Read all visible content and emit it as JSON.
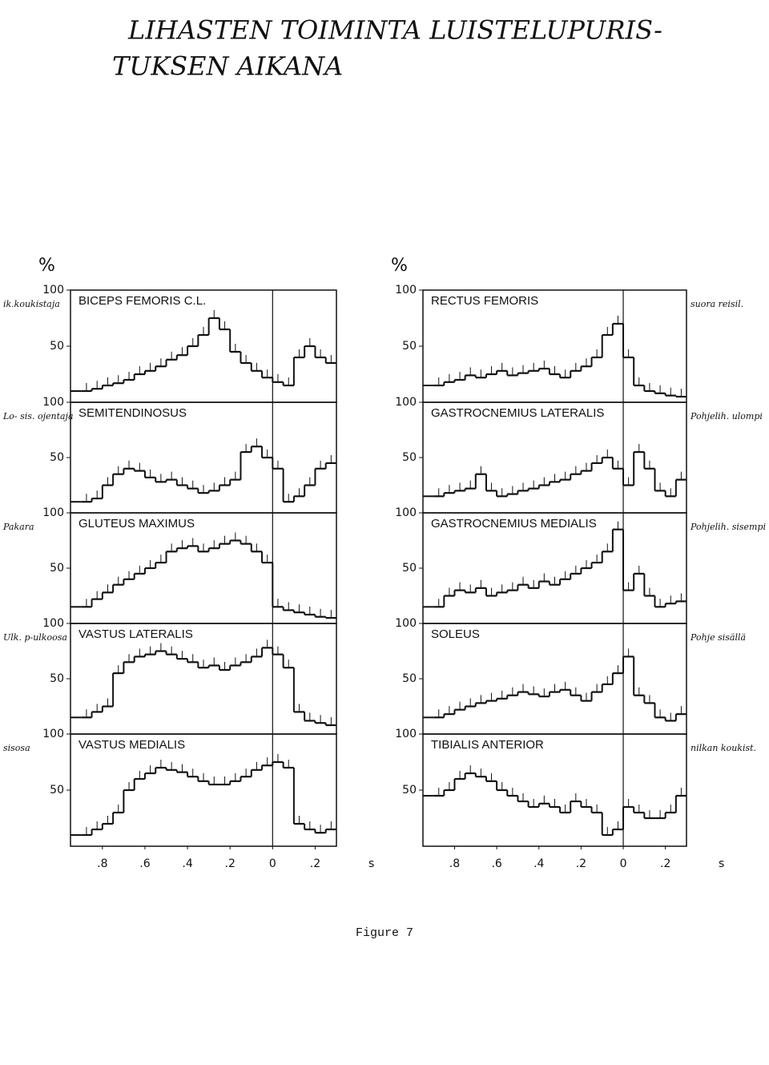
{
  "title_lines": [
    "LIHASTEN TOIMINTA LUISTELUPURIS-",
    "TUKSEN AIKANA"
  ],
  "caption": "Figure 7",
  "left_notes": [
    "ik.koukistaja",
    "Lo- sis. ojentaja",
    "Pakara",
    "Ulk. p-ulkoosa",
    "sisosa"
  ],
  "right_notes": [
    "suora reisil.",
    "Pohjelih. ulompi",
    "Pohjelih. sisempi",
    "Pohje sisällä",
    "nilkan koukist."
  ],
  "chart_data": [
    {
      "type": "step",
      "title": "BICEPS FEMORIS C.L.",
      "ylabel": "%",
      "xlim": [
        -0.95,
        0.3
      ],
      "ylim": [
        0,
        100
      ],
      "yticks": [
        100,
        50
      ],
      "x": [
        -0.9,
        -0.85,
        -0.8,
        -0.75,
        -0.7,
        -0.65,
        -0.6,
        -0.55,
        -0.5,
        -0.45,
        -0.4,
        -0.35,
        -0.3,
        -0.25,
        -0.2,
        -0.15,
        -0.1,
        -0.05,
        0,
        0.05,
        0.1,
        0.15,
        0.2,
        0.25
      ],
      "values": [
        10,
        12,
        15,
        17,
        20,
        25,
        28,
        32,
        38,
        42,
        50,
        60,
        75,
        65,
        45,
        35,
        28,
        22,
        18,
        15,
        40,
        50,
        40,
        35
      ]
    },
    {
      "type": "step",
      "title": "SEMITENDINOSUS",
      "xlim": [
        -0.95,
        0.3
      ],
      "ylim": [
        0,
        100
      ],
      "yticks": [
        100,
        50
      ],
      "x": [
        -0.9,
        -0.85,
        -0.8,
        -0.75,
        -0.7,
        -0.65,
        -0.6,
        -0.55,
        -0.5,
        -0.45,
        -0.4,
        -0.35,
        -0.3,
        -0.25,
        -0.2,
        -0.15,
        -0.1,
        -0.05,
        0,
        0.05,
        0.1,
        0.15,
        0.2,
        0.25
      ],
      "values": [
        10,
        13,
        25,
        35,
        40,
        38,
        32,
        28,
        30,
        25,
        22,
        18,
        20,
        25,
        30,
        55,
        60,
        50,
        40,
        10,
        15,
        25,
        40,
        45
      ]
    },
    {
      "type": "step",
      "title": "GLUTEUS MAXIMUS",
      "xlim": [
        -0.95,
        0.3
      ],
      "ylim": [
        0,
        100
      ],
      "yticks": [
        100,
        50
      ],
      "x": [
        -0.9,
        -0.85,
        -0.8,
        -0.75,
        -0.7,
        -0.65,
        -0.6,
        -0.55,
        -0.5,
        -0.45,
        -0.4,
        -0.35,
        -0.3,
        -0.25,
        -0.2,
        -0.15,
        -0.1,
        -0.05,
        0,
        0.05,
        0.1,
        0.15,
        0.2,
        0.25
      ],
      "values": [
        15,
        22,
        28,
        35,
        40,
        45,
        50,
        55,
        65,
        68,
        70,
        65,
        68,
        72,
        75,
        72,
        65,
        55,
        15,
        12,
        10,
        8,
        6,
        5
      ]
    },
    {
      "type": "step",
      "title": "VASTUS LATERALIS",
      "xlim": [
        -0.95,
        0.3
      ],
      "ylim": [
        0,
        100
      ],
      "yticks": [
        100,
        50
      ],
      "x": [
        -0.9,
        -0.85,
        -0.8,
        -0.75,
        -0.7,
        -0.65,
        -0.6,
        -0.55,
        -0.5,
        -0.45,
        -0.4,
        -0.35,
        -0.3,
        -0.25,
        -0.2,
        -0.15,
        -0.1,
        -0.05,
        0,
        0.05,
        0.1,
        0.15,
        0.2,
        0.25
      ],
      "values": [
        15,
        20,
        25,
        55,
        65,
        70,
        72,
        75,
        72,
        68,
        65,
        60,
        62,
        58,
        62,
        65,
        70,
        78,
        72,
        60,
        20,
        12,
        10,
        8
      ]
    },
    {
      "type": "step",
      "title": "VASTUS MEDIALIS",
      "xlim": [
        -0.95,
        0.3
      ],
      "ylim": [
        0,
        100
      ],
      "yticks": [
        100,
        50
      ],
      "xlabel": "s",
      "xticks": [
        {
          "value": -0.8,
          "label": ".8"
        },
        {
          "value": -0.6,
          "label": ".6"
        },
        {
          "value": -0.4,
          "label": ".4"
        },
        {
          "value": -0.2,
          "label": ".2"
        },
        0,
        {
          "value": 0.2,
          "label": ".2"
        }
      ],
      "x": [
        -0.9,
        -0.85,
        -0.8,
        -0.75,
        -0.7,
        -0.65,
        -0.6,
        -0.55,
        -0.5,
        -0.45,
        -0.4,
        -0.35,
        -0.3,
        -0.25,
        -0.2,
        -0.15,
        -0.1,
        -0.05,
        0,
        0.05,
        0.1,
        0.15,
        0.2,
        0.25
      ],
      "values": [
        10,
        15,
        20,
        30,
        50,
        60,
        65,
        70,
        68,
        66,
        62,
        58,
        55,
        55,
        58,
        62,
        68,
        72,
        75,
        70,
        20,
        15,
        12,
        15
      ]
    },
    {
      "type": "step",
      "title": "RECTUS FEMORIS",
      "ylabel": "%",
      "xlim": [
        -0.95,
        0.3
      ],
      "ylim": [
        0,
        100
      ],
      "yticks": [
        100,
        50
      ],
      "x": [
        -0.9,
        -0.85,
        -0.8,
        -0.75,
        -0.7,
        -0.65,
        -0.6,
        -0.55,
        -0.5,
        -0.45,
        -0.4,
        -0.35,
        -0.3,
        -0.25,
        -0.2,
        -0.15,
        -0.1,
        -0.05,
        0,
        0.05,
        0.1,
        0.15,
        0.2,
        0.25
      ],
      "values": [
        15,
        18,
        20,
        24,
        22,
        25,
        28,
        24,
        26,
        28,
        30,
        25,
        22,
        28,
        32,
        40,
        60,
        70,
        40,
        15,
        10,
        8,
        6,
        5
      ]
    },
    {
      "type": "step",
      "title": "GASTROCNEMIUS LATERALIS",
      "xlim": [
        -0.95,
        0.3
      ],
      "ylim": [
        0,
        100
      ],
      "yticks": [
        100,
        50
      ],
      "x": [
        -0.9,
        -0.85,
        -0.8,
        -0.75,
        -0.7,
        -0.65,
        -0.6,
        -0.55,
        -0.5,
        -0.45,
        -0.4,
        -0.35,
        -0.3,
        -0.25,
        -0.2,
        -0.15,
        -0.1,
        -0.05,
        0,
        0.05,
        0.1,
        0.15,
        0.2,
        0.25
      ],
      "values": [
        15,
        18,
        20,
        22,
        35,
        20,
        15,
        17,
        20,
        22,
        25,
        28,
        30,
        35,
        38,
        45,
        50,
        40,
        25,
        55,
        40,
        20,
        15,
        30
      ]
    },
    {
      "type": "step",
      "title": "GASTROCNEMIUS MEDIALIS",
      "xlim": [
        -0.95,
        0.3
      ],
      "ylim": [
        0,
        100
      ],
      "yticks": [
        100,
        50
      ],
      "x": [
        -0.9,
        -0.85,
        -0.8,
        -0.75,
        -0.7,
        -0.65,
        -0.6,
        -0.55,
        -0.5,
        -0.45,
        -0.4,
        -0.35,
        -0.3,
        -0.25,
        -0.2,
        -0.15,
        -0.1,
        -0.05,
        0,
        0.05,
        0.1,
        0.15,
        0.2,
        0.25
      ],
      "values": [
        15,
        25,
        30,
        28,
        32,
        25,
        28,
        30,
        35,
        32,
        38,
        35,
        40,
        45,
        50,
        55,
        65,
        85,
        30,
        45,
        25,
        15,
        18,
        20
      ]
    },
    {
      "type": "step",
      "title": "SOLEUS",
      "xlim": [
        -0.95,
        0.3
      ],
      "ylim": [
        0,
        100
      ],
      "yticks": [
        100,
        50
      ],
      "x": [
        -0.9,
        -0.85,
        -0.8,
        -0.75,
        -0.7,
        -0.65,
        -0.6,
        -0.55,
        -0.5,
        -0.45,
        -0.4,
        -0.35,
        -0.3,
        -0.25,
        -0.2,
        -0.15,
        -0.1,
        -0.05,
        0,
        0.05,
        0.1,
        0.15,
        0.2,
        0.25
      ],
      "values": [
        15,
        18,
        22,
        25,
        28,
        30,
        32,
        35,
        38,
        36,
        34,
        38,
        40,
        35,
        30,
        38,
        45,
        55,
        70,
        35,
        28,
        15,
        12,
        18
      ]
    },
    {
      "type": "step",
      "title": "TIBIALIS ANTERIOR",
      "xlim": [
        -0.95,
        0.3
      ],
      "ylim": [
        0,
        100
      ],
      "yticks": [
        100,
        50
      ],
      "xlabel": "s",
      "xticks": [
        {
          "value": -0.8,
          "label": ".8"
        },
        {
          "value": -0.6,
          "label": ".6"
        },
        {
          "value": -0.4,
          "label": ".4"
        },
        {
          "value": -0.2,
          "label": ".2"
        },
        0,
        {
          "value": 0.2,
          "label": ".2"
        }
      ],
      "x": [
        -0.9,
        -0.85,
        -0.8,
        -0.75,
        -0.7,
        -0.65,
        -0.6,
        -0.55,
        -0.5,
        -0.45,
        -0.4,
        -0.35,
        -0.3,
        -0.25,
        -0.2,
        -0.15,
        -0.1,
        -0.05,
        0,
        0.05,
        0.1,
        0.15,
        0.2,
        0.25
      ],
      "values": [
        45,
        50,
        60,
        65,
        62,
        58,
        50,
        45,
        40,
        35,
        38,
        35,
        30,
        40,
        35,
        30,
        10,
        15,
        35,
        30,
        25,
        25,
        30,
        45
      ]
    }
  ]
}
